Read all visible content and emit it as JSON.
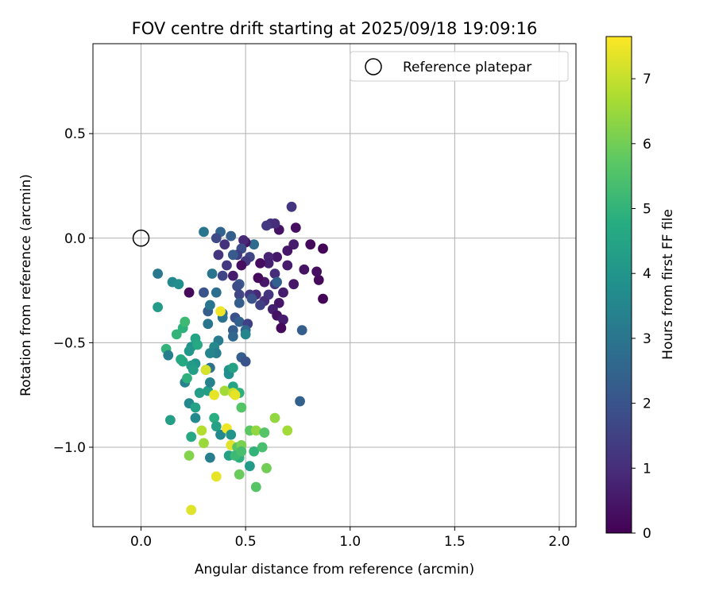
{
  "chart_data": {
    "type": "scatter",
    "title": "FOV centre drift starting at 2025/09/18 19:09:16",
    "xlabel": "Angular distance from reference (arcmin)",
    "ylabel": "Rotation from reference (arcmin)",
    "xlim": [
      -0.23,
      2.08
    ],
    "ylim": [
      -1.38,
      0.93
    ],
    "xticks": [
      0.0,
      0.5,
      1.0,
      1.5,
      2.0
    ],
    "xtick_labels": [
      "0.0",
      "0.5",
      "1.0",
      "1.5",
      "2.0"
    ],
    "yticks": [
      -1.0,
      -0.5,
      0.0,
      0.5
    ],
    "ytick_labels": [
      "−1.0",
      "−0.5",
      "0.0",
      "0.5"
    ],
    "grid": true,
    "legend": {
      "placement": "top-right",
      "entries": [
        "Reference platepar"
      ]
    },
    "reference_point": {
      "x": 0.0,
      "y": 0.0
    },
    "colorbar": {
      "label": "Hours from first FF file",
      "colormap": "viridis",
      "range": [
        0,
        7.65
      ],
      "ticks": [
        0,
        1,
        2,
        3,
        4,
        5,
        6,
        7
      ],
      "tick_labels": [
        "0",
        "1",
        "2",
        "3",
        "4",
        "5",
        "6",
        "7"
      ]
    },
    "points": [
      {
        "x": 0.87,
        "y": -0.05,
        "h": 0.1
      },
      {
        "x": 0.81,
        "y": -0.03,
        "h": 0.2
      },
      {
        "x": 0.74,
        "y": 0.05,
        "h": 0.3
      },
      {
        "x": 0.72,
        "y": 0.15,
        "h": 1.2
      },
      {
        "x": 0.84,
        "y": -0.16,
        "h": 0.3
      },
      {
        "x": 0.85,
        "y": -0.2,
        "h": 0.2
      },
      {
        "x": 0.87,
        "y": -0.29,
        "h": 0.1
      },
      {
        "x": 0.78,
        "y": -0.15,
        "h": 0.4
      },
      {
        "x": 0.73,
        "y": -0.22,
        "h": 0.5
      },
      {
        "x": 0.73,
        "y": -0.03,
        "h": 0.6
      },
      {
        "x": 0.7,
        "y": -0.06,
        "h": 0.5
      },
      {
        "x": 0.7,
        "y": -0.13,
        "h": 0.6
      },
      {
        "x": 0.66,
        "y": 0.04,
        "h": 0.4
      },
      {
        "x": 0.62,
        "y": 0.07,
        "h": 1.1
      },
      {
        "x": 0.64,
        "y": 0.07,
        "h": 1.0
      },
      {
        "x": 0.6,
        "y": 0.06,
        "h": 1.3
      },
      {
        "x": 0.65,
        "y": -0.09,
        "h": 0.5
      },
      {
        "x": 0.61,
        "y": -0.09,
        "h": 0.8
      },
      {
        "x": 0.61,
        "y": -0.12,
        "h": 0.7
      },
      {
        "x": 0.64,
        "y": -0.17,
        "h": 1.0
      },
      {
        "x": 0.64,
        "y": -0.22,
        "h": 1.3
      },
      {
        "x": 0.65,
        "y": -0.21,
        "h": 2.4
      },
      {
        "x": 0.68,
        "y": -0.26,
        "h": 0.6
      },
      {
        "x": 0.66,
        "y": -0.31,
        "h": 0.5
      },
      {
        "x": 0.63,
        "y": -0.34,
        "h": 0.7
      },
      {
        "x": 0.65,
        "y": -0.37,
        "h": 0.4
      },
      {
        "x": 0.68,
        "y": -0.39,
        "h": 0.6
      },
      {
        "x": 0.67,
        "y": -0.43,
        "h": 0.2
      },
      {
        "x": 0.59,
        "y": -0.21,
        "h": 0.5
      },
      {
        "x": 0.61,
        "y": -0.27,
        "h": 1.2
      },
      {
        "x": 0.59,
        "y": -0.3,
        "h": 1.0
      },
      {
        "x": 0.57,
        "y": -0.32,
        "h": 1.5
      },
      {
        "x": 0.55,
        "y": -0.27,
        "h": 0.9
      },
      {
        "x": 0.57,
        "y": -0.12,
        "h": 0.3
      },
      {
        "x": 0.56,
        "y": -0.19,
        "h": 0.2
      },
      {
        "x": 0.54,
        "y": -0.03,
        "h": 2.7
      },
      {
        "x": 0.52,
        "y": -0.09,
        "h": 1.6
      },
      {
        "x": 0.5,
        "y": -0.11,
        "h": 1.3
      },
      {
        "x": 0.5,
        "y": -0.02,
        "h": 0.4
      },
      {
        "x": 0.49,
        "y": -0.01,
        "h": 0.9
      },
      {
        "x": 0.48,
        "y": -0.13,
        "h": 0.3
      },
      {
        "x": 0.48,
        "y": -0.05,
        "h": 1.8
      },
      {
        "x": 0.46,
        "y": -0.08,
        "h": 1.4
      },
      {
        "x": 0.44,
        "y": -0.08,
        "h": 2.2
      },
      {
        "x": 0.44,
        "y": -0.18,
        "h": 0.6
      },
      {
        "x": 0.41,
        "y": -0.13,
        "h": 1.3
      },
      {
        "x": 0.4,
        "y": -0.03,
        "h": 1.1
      },
      {
        "x": 0.43,
        "y": 0.01,
        "h": 2.3
      },
      {
        "x": 0.38,
        "y": 0.03,
        "h": 2.5
      },
      {
        "x": 0.36,
        "y": 0.0,
        "h": 1.7
      },
      {
        "x": 0.3,
        "y": 0.03,
        "h": 3.0
      },
      {
        "x": 0.37,
        "y": -0.08,
        "h": 1.2
      },
      {
        "x": 0.39,
        "y": -0.18,
        "h": 1.6
      },
      {
        "x": 0.34,
        "y": -0.17,
        "h": 3.0
      },
      {
        "x": 0.47,
        "y": -0.22,
        "h": 2.1
      },
      {
        "x": 0.46,
        "y": -0.23,
        "h": 1.8
      },
      {
        "x": 0.52,
        "y": -0.27,
        "h": 1.3
      },
      {
        "x": 0.53,
        "y": -0.29,
        "h": 2.0
      },
      {
        "x": 0.47,
        "y": -0.27,
        "h": 1.6
      },
      {
        "x": 0.47,
        "y": -0.31,
        "h": 2.3
      },
      {
        "x": 0.45,
        "y": -0.38,
        "h": 1.9
      },
      {
        "x": 0.47,
        "y": -0.4,
        "h": 2.4
      },
      {
        "x": 0.51,
        "y": -0.41,
        "h": 1.5
      },
      {
        "x": 0.5,
        "y": -0.44,
        "h": 2.6
      },
      {
        "x": 0.44,
        "y": -0.44,
        "h": 2.3
      },
      {
        "x": 0.44,
        "y": -0.47,
        "h": 2.6
      },
      {
        "x": 0.5,
        "y": -0.46,
        "h": 3.5
      },
      {
        "x": 0.39,
        "y": -0.36,
        "h": 2.7
      },
      {
        "x": 0.39,
        "y": -0.38,
        "h": 2.9
      },
      {
        "x": 0.32,
        "y": -0.35,
        "h": 2.3
      },
      {
        "x": 0.32,
        "y": -0.41,
        "h": 3.0
      },
      {
        "x": 0.3,
        "y": -0.26,
        "h": 2.0
      },
      {
        "x": 0.36,
        "y": -0.26,
        "h": 2.8
      },
      {
        "x": 0.33,
        "y": -0.32,
        "h": 3.0
      },
      {
        "x": 0.23,
        "y": -0.26,
        "h": 0.2
      },
      {
        "x": 0.77,
        "y": -0.44,
        "h": 2.3
      },
      {
        "x": 0.76,
        "y": -0.78,
        "h": 2.4
      },
      {
        "x": 0.08,
        "y": -0.17,
        "h": 3.1
      },
      {
        "x": 0.15,
        "y": -0.21,
        "h": 3.6
      },
      {
        "x": 0.18,
        "y": -0.22,
        "h": 3.8
      },
      {
        "x": 0.08,
        "y": -0.33,
        "h": 4.2
      },
      {
        "x": 0.48,
        "y": -0.57,
        "h": 2.3
      },
      {
        "x": 0.5,
        "y": -0.59,
        "h": 2.0
      },
      {
        "x": 0.37,
        "y": -0.49,
        "h": 3.2
      },
      {
        "x": 0.35,
        "y": -0.52,
        "h": 3.6
      },
      {
        "x": 0.36,
        "y": -0.55,
        "h": 3.3
      },
      {
        "x": 0.33,
        "y": -0.55,
        "h": 3.5
      },
      {
        "x": 0.33,
        "y": -0.62,
        "h": 2.9
      },
      {
        "x": 0.31,
        "y": -0.63,
        "h": 4.2
      },
      {
        "x": 0.26,
        "y": -0.6,
        "h": 4.0
      },
      {
        "x": 0.24,
        "y": -0.61,
        "h": 4.2
      },
      {
        "x": 0.25,
        "y": -0.63,
        "h": 4.3
      },
      {
        "x": 0.24,
        "y": -0.52,
        "h": 3.9
      },
      {
        "x": 0.23,
        "y": -0.54,
        "h": 4.1
      },
      {
        "x": 0.26,
        "y": -0.48,
        "h": 4.5
      },
      {
        "x": 0.27,
        "y": -0.51,
        "h": 4.6
      },
      {
        "x": 0.2,
        "y": -0.43,
        "h": 4.9
      },
      {
        "x": 0.21,
        "y": -0.4,
        "h": 5.2
      },
      {
        "x": 0.17,
        "y": -0.46,
        "h": 5.0
      },
      {
        "x": 0.12,
        "y": -0.53,
        "h": 5.0
      },
      {
        "x": 0.13,
        "y": -0.56,
        "h": 3.3
      },
      {
        "x": 0.19,
        "y": -0.58,
        "h": 4.6
      },
      {
        "x": 0.2,
        "y": -0.59,
        "h": 4.6
      },
      {
        "x": 0.21,
        "y": -0.69,
        "h": 3.4
      },
      {
        "x": 0.22,
        "y": -0.67,
        "h": 4.9
      },
      {
        "x": 0.23,
        "y": -0.79,
        "h": 3.6
      },
      {
        "x": 0.26,
        "y": -0.81,
        "h": 4.4
      },
      {
        "x": 0.26,
        "y": -0.86,
        "h": 3.6
      },
      {
        "x": 0.14,
        "y": -0.87,
        "h": 4.3
      },
      {
        "x": 0.28,
        "y": -0.74,
        "h": 4.3
      },
      {
        "x": 0.32,
        "y": -0.73,
        "h": 4.3
      },
      {
        "x": 0.33,
        "y": -0.69,
        "h": 3.4
      },
      {
        "x": 0.42,
        "y": -0.63,
        "h": 4.0
      },
      {
        "x": 0.42,
        "y": -0.65,
        "h": 3.8
      },
      {
        "x": 0.44,
        "y": -0.62,
        "h": 4.4
      },
      {
        "x": 0.44,
        "y": -0.71,
        "h": 4.5
      },
      {
        "x": 0.47,
        "y": -0.74,
        "h": 4.9
      },
      {
        "x": 0.48,
        "y": -0.81,
        "h": 5.6
      },
      {
        "x": 0.38,
        "y": -0.35,
        "h": 7.5
      },
      {
        "x": 0.31,
        "y": -0.63,
        "h": 7.2
      },
      {
        "x": 0.35,
        "y": -0.75,
        "h": 7.4
      },
      {
        "x": 0.4,
        "y": -0.73,
        "h": 6.6
      },
      {
        "x": 0.44,
        "y": -0.74,
        "h": 7.0
      },
      {
        "x": 0.45,
        "y": -0.75,
        "h": 7.4
      },
      {
        "x": 0.35,
        "y": -0.86,
        "h": 4.8
      },
      {
        "x": 0.36,
        "y": -0.9,
        "h": 4.4
      },
      {
        "x": 0.38,
        "y": -0.94,
        "h": 3.6
      },
      {
        "x": 0.41,
        "y": -0.91,
        "h": 7.5
      },
      {
        "x": 0.43,
        "y": -0.94,
        "h": 4.0
      },
      {
        "x": 0.43,
        "y": -0.99,
        "h": 7.3
      },
      {
        "x": 0.46,
        "y": -1.0,
        "h": 5.6
      },
      {
        "x": 0.48,
        "y": -0.99,
        "h": 6.1
      },
      {
        "x": 0.47,
        "y": -1.05,
        "h": 4.9
      },
      {
        "x": 0.42,
        "y": -1.04,
        "h": 4.4
      },
      {
        "x": 0.45,
        "y": -1.04,
        "h": 5.2
      },
      {
        "x": 0.48,
        "y": -1.02,
        "h": 5.4
      },
      {
        "x": 0.52,
        "y": -0.92,
        "h": 5.7
      },
      {
        "x": 0.55,
        "y": -0.92,
        "h": 6.4
      },
      {
        "x": 0.59,
        "y": -0.93,
        "h": 5.6
      },
      {
        "x": 0.64,
        "y": -0.86,
        "h": 6.4
      },
      {
        "x": 0.7,
        "y": -0.92,
        "h": 6.6
      },
      {
        "x": 0.54,
        "y": -1.02,
        "h": 5.0
      },
      {
        "x": 0.58,
        "y": -1.0,
        "h": 5.4
      },
      {
        "x": 0.6,
        "y": -1.1,
        "h": 6.0
      },
      {
        "x": 0.52,
        "y": -1.09,
        "h": 4.2
      },
      {
        "x": 0.47,
        "y": -1.13,
        "h": 5.9
      },
      {
        "x": 0.55,
        "y": -1.19,
        "h": 5.6
      },
      {
        "x": 0.33,
        "y": -1.05,
        "h": 3.3
      },
      {
        "x": 0.3,
        "y": -0.98,
        "h": 6.5
      },
      {
        "x": 0.29,
        "y": -0.92,
        "h": 6.8
      },
      {
        "x": 0.24,
        "y": -0.95,
        "h": 4.6
      },
      {
        "x": 0.23,
        "y": -1.04,
        "h": 6.2
      },
      {
        "x": 0.36,
        "y": -1.14,
        "h": 7.4
      },
      {
        "x": 0.24,
        "y": -1.3,
        "h": 7.3
      }
    ]
  }
}
